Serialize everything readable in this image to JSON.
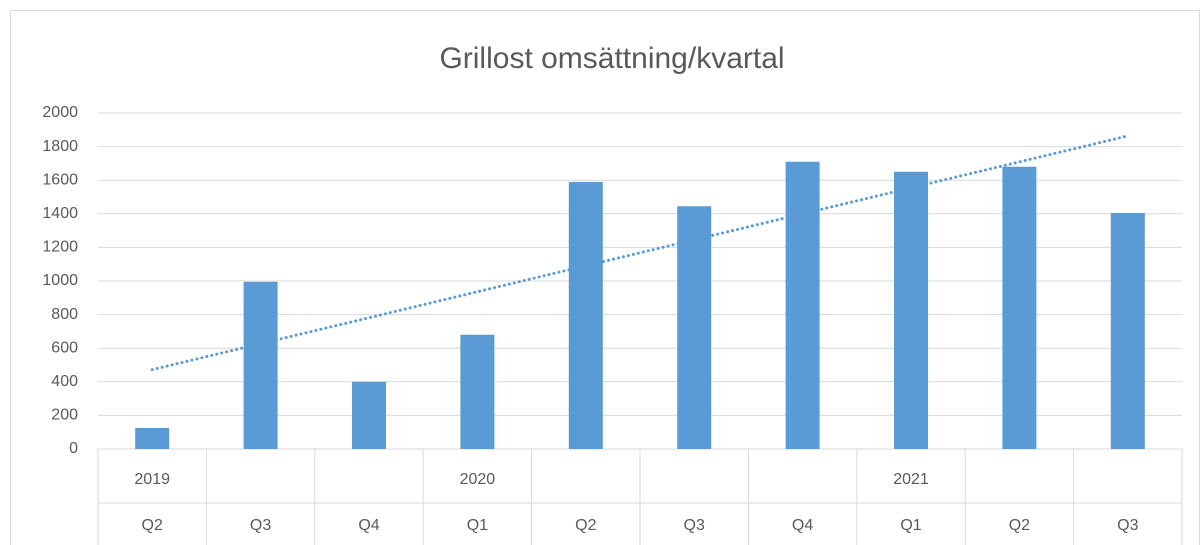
{
  "chart_data": {
    "type": "bar",
    "title": "Grillost omsättning/kvartal",
    "categories": [
      "Q2",
      "Q3",
      "Q4",
      "Q1",
      "Q2",
      "Q3",
      "Q4",
      "Q1",
      "Q2",
      "Q3"
    ],
    "years": [
      "2019",
      null,
      null,
      "2020",
      null,
      null,
      null,
      "2021",
      null,
      null
    ],
    "values": [
      125,
      995,
      400,
      680,
      1590,
      1445,
      1710,
      1650,
      1680,
      1405
    ],
    "color": "#5b9bd5",
    "ylim": [
      0,
      2000
    ],
    "yticks": [
      0,
      200,
      400,
      600,
      800,
      1000,
      1200,
      1400,
      1600,
      1800,
      2000
    ],
    "grid": true,
    "trendline": "linear"
  }
}
